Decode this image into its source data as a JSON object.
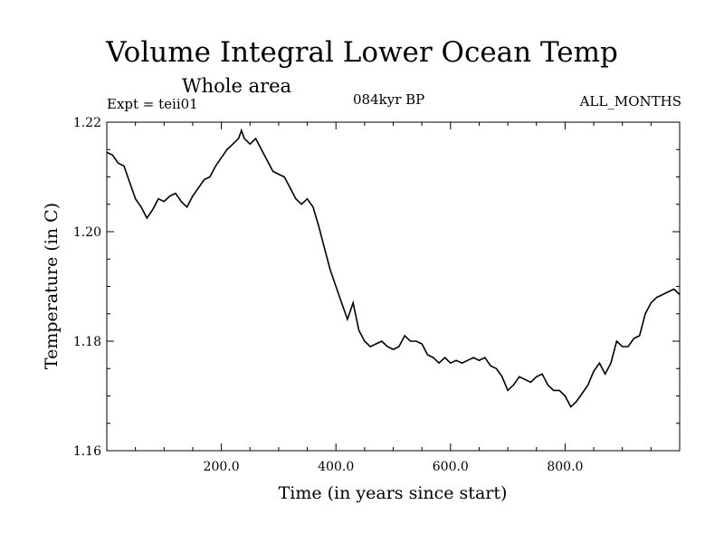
{
  "header": {
    "title": "Volume Integral Lower Ocean Temp",
    "subtitle": "Whole area",
    "experiment": "Expt = teii01",
    "period": "084kyr BP",
    "months": "ALL_MONTHS"
  },
  "chart_data": {
    "type": "line",
    "title": "Volume Integral Lower Ocean Temp",
    "subtitle": "Whole area",
    "xlabel": "Time (in years since start)",
    "ylabel": "Temperature (in C)",
    "xlim": [
      0,
      1000
    ],
    "ylim": [
      1.16,
      1.22
    ],
    "xticks": [
      200,
      400,
      600,
      800
    ],
    "xtick_labels": [
      "200.0",
      "400.0",
      "600.0",
      "800.0"
    ],
    "yticks": [
      1.16,
      1.18,
      1.2,
      1.22
    ],
    "ytick_labels": [
      "1.16",
      "1.18",
      "1.20",
      "1.22"
    ],
    "grid": false,
    "series": [
      {
        "x": [
          0,
          10,
          20,
          30,
          40,
          50,
          60,
          70,
          80,
          90,
          100,
          110,
          120,
          130,
          140,
          150,
          160,
          170,
          180,
          190,
          200,
          210,
          220,
          230,
          235,
          240,
          250,
          260,
          270,
          280,
          290,
          300,
          310,
          320,
          330,
          340,
          350,
          360,
          370,
          380,
          390,
          400,
          410,
          420,
          430,
          440,
          450,
          460,
          470,
          480,
          490,
          500,
          510,
          520,
          530,
          540,
          550,
          560,
          570,
          580,
          590,
          600,
          610,
          620,
          630,
          640,
          650,
          660,
          670,
          680,
          690,
          700,
          710,
          720,
          730,
          740,
          750,
          760,
          770,
          780,
          790,
          800,
          810,
          820,
          830,
          840,
          850,
          860,
          870,
          880,
          890,
          900,
          910,
          920,
          930,
          940,
          950,
          960,
          970,
          980,
          990,
          1000
        ],
        "y": [
          1.2145,
          1.214,
          1.2125,
          1.212,
          1.209,
          1.206,
          1.2045,
          1.2025,
          1.204,
          1.206,
          1.2055,
          1.2065,
          1.207,
          1.2055,
          1.2045,
          1.2065,
          1.208,
          1.2095,
          1.21,
          1.212,
          1.2135,
          1.215,
          1.216,
          1.217,
          1.2185,
          1.217,
          1.216,
          1.217,
          1.215,
          1.213,
          1.211,
          1.2105,
          1.21,
          1.208,
          1.206,
          1.205,
          1.206,
          1.2045,
          1.201,
          1.197,
          1.193,
          1.19,
          1.187,
          1.184,
          1.187,
          1.182,
          1.18,
          1.179,
          1.1795,
          1.18,
          1.179,
          1.1785,
          1.179,
          1.181,
          1.18,
          1.18,
          1.1795,
          1.1775,
          1.177,
          1.176,
          1.177,
          1.176,
          1.1765,
          1.176,
          1.1765,
          1.177,
          1.1765,
          1.177,
          1.1755,
          1.175,
          1.1735,
          1.171,
          1.172,
          1.1735,
          1.173,
          1.1725,
          1.1735,
          1.174,
          1.172,
          1.171,
          1.171,
          1.17,
          1.168,
          1.169,
          1.1705,
          1.172,
          1.1745,
          1.176,
          1.174,
          1.176,
          1.18,
          1.179,
          1.179,
          1.1805,
          1.181,
          1.185,
          1.187,
          1.188,
          1.1885,
          1.189,
          1.1895,
          1.1885
        ]
      }
    ]
  }
}
